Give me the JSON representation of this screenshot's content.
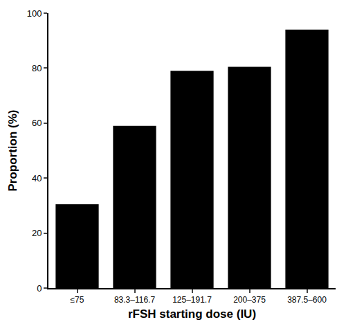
{
  "chart_data": {
    "type": "bar",
    "x_label": "rFSH starting dose (IU)",
    "y_label": "Proportion (%)",
    "categories": [
      "≤75",
      "83.3–116.7",
      "125–191.7",
      "200–375",
      "387.5–600"
    ],
    "values": [
      30.5,
      59,
      79,
      80.5,
      94
    ],
    "color": "#000000",
    "ylim": [
      0,
      100
    ],
    "yticks": [
      0,
      20,
      40,
      60,
      80,
      100
    ],
    "grid": false
  }
}
